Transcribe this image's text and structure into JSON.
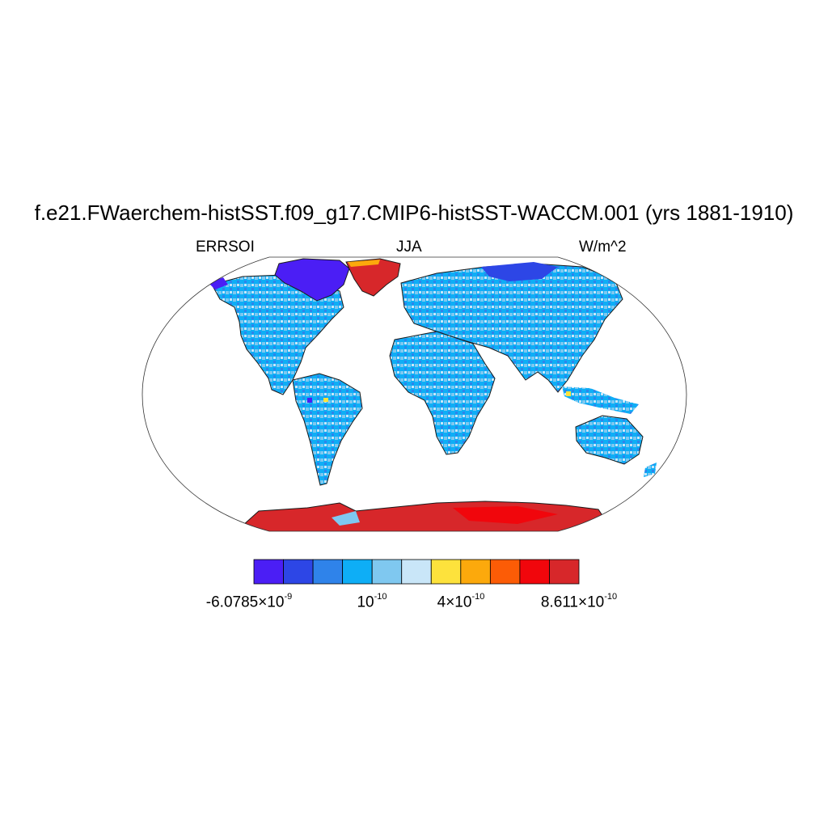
{
  "title": "f.e21.FWaerchem-histSST.f09_g17.CMIP6-histSST-WACCM.001 (yrs 1881-1910)",
  "subtitle_left": "ERRSOI",
  "subtitle_center": "JJA",
  "subtitle_right": "W/m^2",
  "colorbar": {
    "colors": [
      "#4b1ef5",
      "#2d46e6",
      "#2f83ea",
      "#0eaef6",
      "#7fc8f0",
      "#c9e6f8",
      "#fde23c",
      "#fca90c",
      "#fc5c06",
      "#f1060c",
      "#d7272a"
    ],
    "labels": [
      {
        "mantissa": "-6.0785×10",
        "exp": "-9"
      },
      {
        "mantissa": "10",
        "exp": "-10"
      },
      {
        "mantissa": "4×10",
        "exp": "-10"
      },
      {
        "mantissa": "8.611×10",
        "exp": "-10"
      }
    ]
  }
}
